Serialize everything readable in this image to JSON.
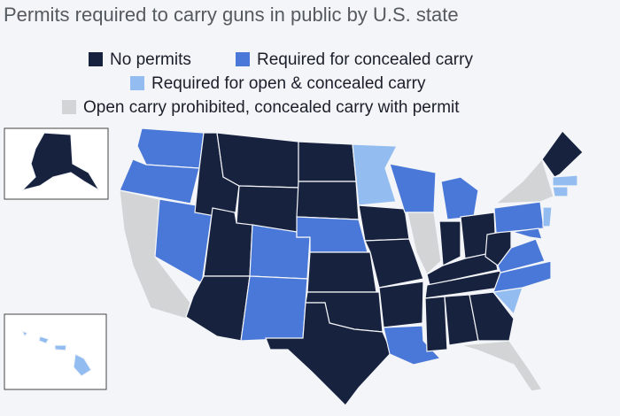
{
  "title": "Permits required to carry guns in public by U.S. state",
  "legend": [
    {
      "label": "No permits",
      "color": "#17223f"
    },
    {
      "label": "Required for concealed carry",
      "color": "#4a78d8"
    },
    {
      "label": "Required for open & concealed carry",
      "color": "#93bdf0"
    },
    {
      "label": "Open carry prohibited, concealed carry with permit",
      "color": "#d3d4d6"
    }
  ]
}
